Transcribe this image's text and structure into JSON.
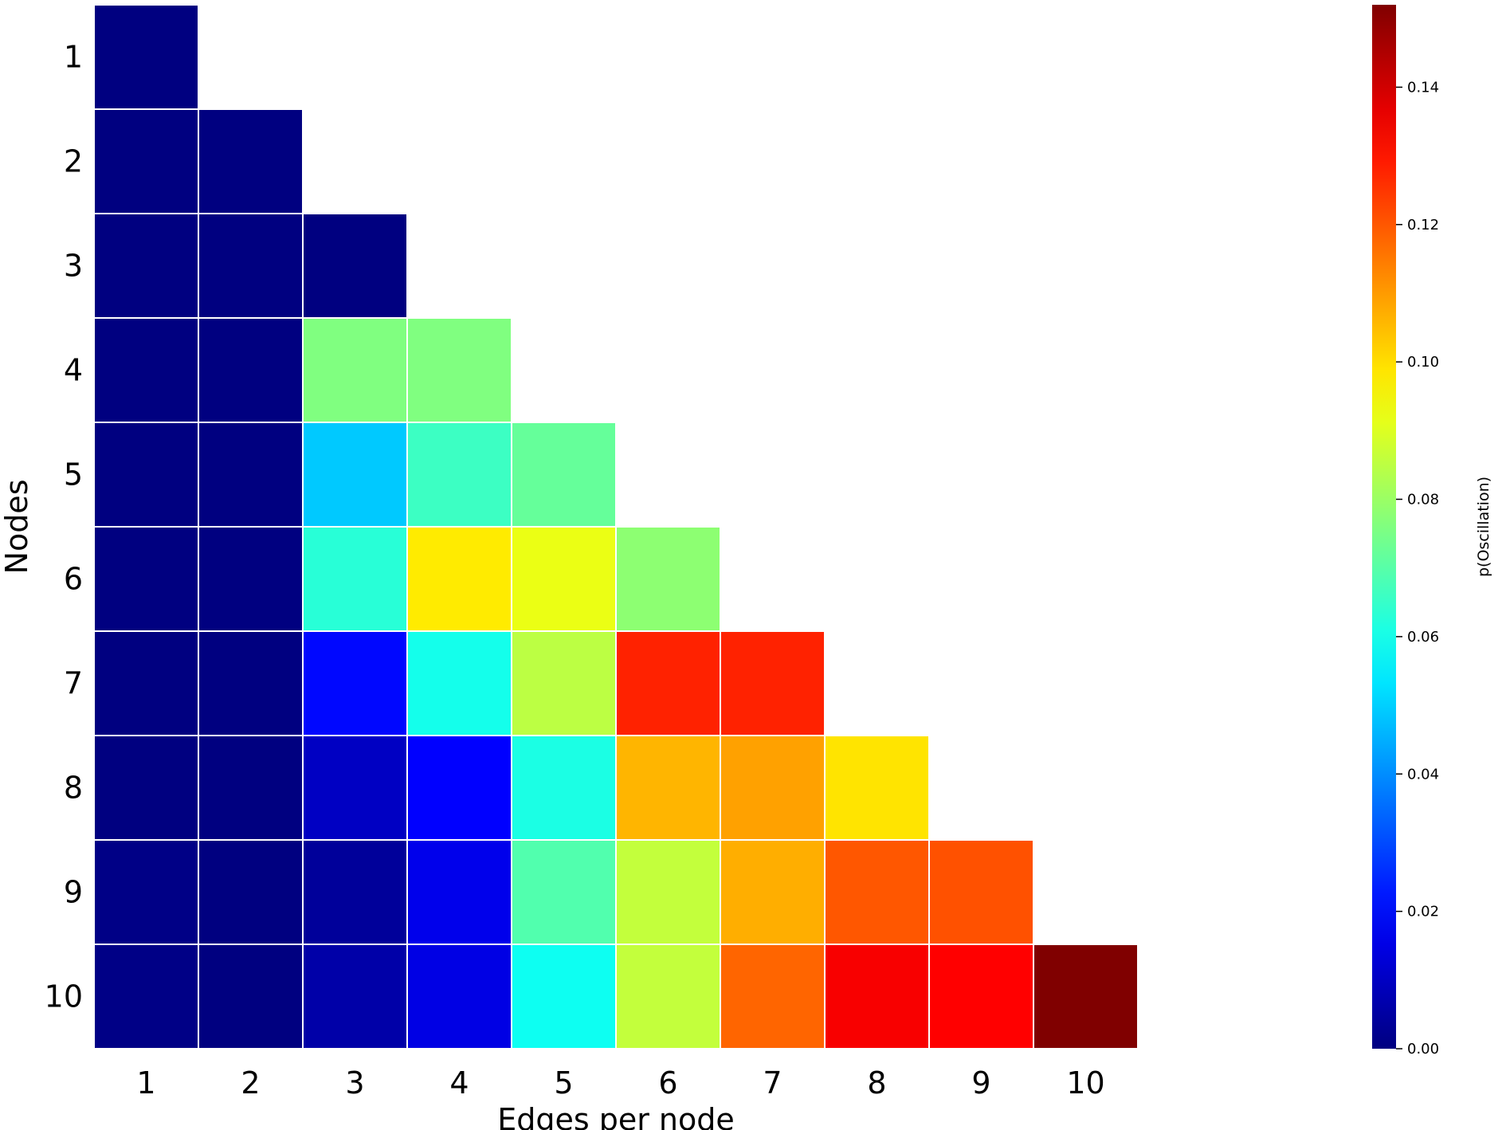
{
  "chart_data": {
    "type": "heatmap",
    "title": "",
    "xlabel": "Edges per node",
    "ylabel": "Nodes",
    "x_categories": [
      "1",
      "2",
      "3",
      "4",
      "5",
      "6",
      "7",
      "8",
      "9",
      "10"
    ],
    "y_categories": [
      "1",
      "2",
      "3",
      "4",
      "5",
      "6",
      "7",
      "8",
      "9",
      "10"
    ],
    "values": [
      [
        0.0,
        null,
        null,
        null,
        null,
        null,
        null,
        null,
        null,
        null
      ],
      [
        0.0,
        0.0,
        null,
        null,
        null,
        null,
        null,
        null,
        null,
        null
      ],
      [
        0.0,
        0.0,
        0.0,
        null,
        null,
        null,
        null,
        null,
        null,
        null
      ],
      [
        0.0,
        0.0,
        0.076,
        0.076,
        null,
        null,
        null,
        null,
        null,
        null
      ],
      [
        0.0,
        0.0,
        0.049,
        0.066,
        0.072,
        null,
        null,
        null,
        null,
        null
      ],
      [
        0.0,
        0.0,
        0.063,
        0.098,
        0.092,
        0.078,
        null,
        null,
        null,
        null
      ],
      [
        0.0,
        0.0,
        0.02,
        0.06,
        0.085,
        0.128,
        0.128,
        null,
        null,
        null
      ],
      [
        0.0,
        0.0,
        0.01,
        0.019,
        0.061,
        0.106,
        0.109,
        0.099,
        null,
        null
      ],
      [
        0.001,
        0.0,
        0.004,
        0.016,
        0.069,
        0.086,
        0.107,
        0.12,
        0.121,
        null
      ],
      [
        0.001,
        0.0,
        0.006,
        0.015,
        0.059,
        0.086,
        0.118,
        0.134,
        0.133,
        0.152
      ]
    ],
    "colorbar": {
      "label": "p(Oscillation)",
      "min": 0.0,
      "max": 0.152,
      "ticks": [
        "0.00",
        "0.02",
        "0.04",
        "0.06",
        "0.08",
        "0.10",
        "0.12",
        "0.14"
      ],
      "colormap": "jet"
    },
    "cell_border_color": "#ffffff",
    "grid": false,
    "legend": "colorbar-right"
  }
}
